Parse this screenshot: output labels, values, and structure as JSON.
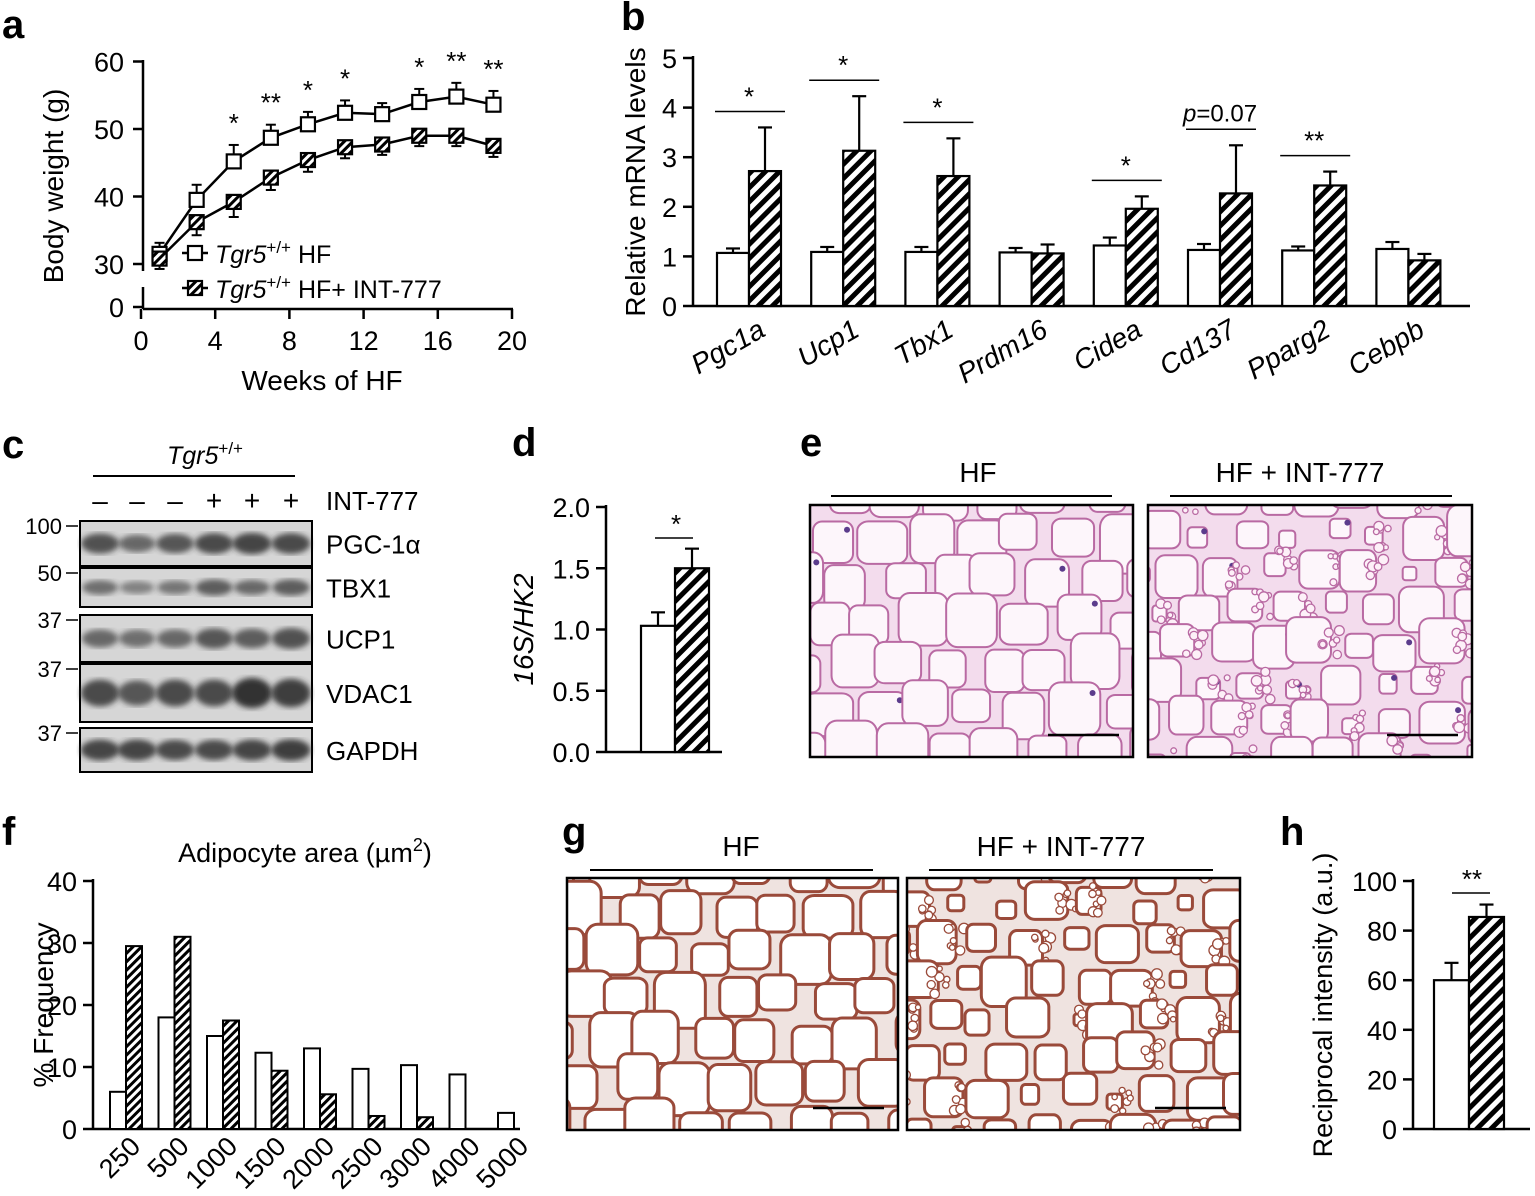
{
  "panels": {
    "a": {
      "letter": "a"
    },
    "b": {
      "letter": "b"
    },
    "c": {
      "letter": "c"
    },
    "d": {
      "letter": "d"
    },
    "e": {
      "letter": "e"
    },
    "f": {
      "letter": "f"
    },
    "g": {
      "letter": "g"
    },
    "h": {
      "letter": "h"
    }
  },
  "colors": {
    "ink": "#000000",
    "he_bg": "#f3dced",
    "he_cell": "#fdf6fb",
    "he_wall": "#b96aa3",
    "he_nuc": "#5b3c8c",
    "ihc_bg": "#efe3e0",
    "ihc_cell": "#ffffff",
    "ihc_wall": "#9a4a3a",
    "blot_bg": "#d6d6d6",
    "blot_band": "#2a2a2a"
  },
  "chart_data": [
    {
      "id": "a",
      "type": "line",
      "title": "",
      "xlabel": "Weeks of HF",
      "ylabel": "Body weight (g)",
      "xlim": [
        0,
        20
      ],
      "ylim_break": [
        [
          0,
          0
        ],
        [
          30,
          60
        ]
      ],
      "xticks": [
        "0",
        "4",
        "8",
        "12",
        "16",
        "20"
      ],
      "yticks": [
        "0",
        "30",
        "40",
        "50",
        "60"
      ],
      "x": [
        1,
        3,
        5,
        7,
        9,
        11,
        13,
        15,
        17,
        19
      ],
      "series": [
        {
          "name": "HF",
          "genotype": "Tgr5",
          "superscript": "+/+",
          "suffix": " HF",
          "marker": "open-square",
          "values": [
            31.5,
            39.5,
            45.2,
            48.7,
            50.7,
            52.4,
            52.2,
            54.0,
            54.8,
            53.6
          ],
          "errors": [
            0.6,
            1.2,
            1.4,
            0.9,
            0.8,
            0.8,
            0.6,
            0.9,
            1.0,
            1.0
          ]
        },
        {
          "name": "HF+ INT-777",
          "genotype": "Tgr5",
          "superscript": "+/+",
          "suffix": " HF+ INT-777",
          "marker": "hatched-square",
          "values": [
            30.8,
            36.2,
            39.2,
            42.8,
            45.4,
            47.3,
            47.7,
            49.0,
            49.0,
            47.5
          ],
          "errors": [
            0.5,
            0.9,
            1.2,
            0.8,
            0.7,
            0.6,
            0.5,
            0.5,
            0.5,
            0.6
          ]
        }
      ],
      "significance": [
        {
          "x": 5,
          "label": "*"
        },
        {
          "x": 7,
          "label": "**"
        },
        {
          "x": 9,
          "label": "*"
        },
        {
          "x": 11,
          "label": "*"
        },
        {
          "x": 15,
          "label": "*"
        },
        {
          "x": 17,
          "label": "**"
        },
        {
          "x": 19,
          "label": "**"
        }
      ]
    },
    {
      "id": "b",
      "type": "bar",
      "ylabel": "Relative mRNA levels",
      "ylim": [
        0,
        5
      ],
      "yticks": [
        "0",
        "1",
        "2",
        "3",
        "4",
        "5"
      ],
      "categories": [
        "Pgc1a",
        "Ucp1",
        "Tbx1",
        "Prdm16",
        "Cidea",
        "Cd137",
        "Pparg2",
        "Cebpb"
      ],
      "series": [
        {
          "name": "HF",
          "values": [
            1.07,
            1.09,
            1.09,
            1.08,
            1.22,
            1.13,
            1.12,
            1.15
          ],
          "errors": [
            0.09,
            0.1,
            0.1,
            0.09,
            0.16,
            0.12,
            0.08,
            0.14
          ]
        },
        {
          "name": "HF + INT-777",
          "values": [
            2.72,
            3.13,
            2.62,
            1.06,
            1.96,
            2.27,
            2.43,
            0.92
          ],
          "errors": [
            0.88,
            1.1,
            0.76,
            0.18,
            0.25,
            0.97,
            0.28,
            0.13
          ]
        }
      ],
      "significance": [
        {
          "category": "Pgc1a",
          "label": "*"
        },
        {
          "category": "Ucp1",
          "label": "*"
        },
        {
          "category": "Tbx1",
          "label": "*"
        },
        {
          "category": "Cidea",
          "label": "*"
        },
        {
          "category": "Cd137",
          "label": "p=0.07"
        },
        {
          "category": "Pparg2",
          "label": "**"
        }
      ]
    },
    {
      "id": "d",
      "type": "bar",
      "ylabel": "16S/HK2",
      "ylim": [
        0,
        2.0
      ],
      "yticks": [
        "0.0",
        "0.5",
        "1.0",
        "1.5",
        "2.0"
      ],
      "categories": [
        "HF",
        "HF + INT-777"
      ],
      "values": [
        1.03,
        1.5
      ],
      "errors": [
        0.11,
        0.16
      ],
      "significance": "*"
    },
    {
      "id": "f",
      "type": "bar",
      "title": "Adipocyte area (µm",
      "title_sup": "2",
      "title_end": ")",
      "ylabel": "% Frequency",
      "ylim": [
        0,
        40
      ],
      "yticks": [
        "0",
        "10",
        "20",
        "30",
        "40"
      ],
      "categories": [
        "250",
        "500",
        "1000",
        "1500",
        "2000",
        "2500",
        "3000",
        "4000",
        "5000"
      ],
      "series": [
        {
          "name": "HF",
          "values": [
            6,
            18,
            15,
            12.3,
            13,
            9.7,
            10.3,
            8.8,
            2.6
          ]
        },
        {
          "name": "HF + INT-777",
          "values": [
            29.5,
            31,
            17.5,
            9.4,
            5.6,
            2.1,
            1.9,
            0,
            0
          ]
        }
      ]
    },
    {
      "id": "h",
      "type": "bar",
      "ylabel": "Reciprocal intensity (a.u.)",
      "ylim": [
        0,
        100
      ],
      "yticks": [
        "0",
        "20",
        "40",
        "60",
        "80",
        "100"
      ],
      "categories": [
        "HF",
        "HF + INT-777"
      ],
      "values": [
        60,
        85.5
      ],
      "errors": [
        7,
        5
      ],
      "significance": "**"
    }
  ],
  "blot": {
    "genotype": "Tgr5",
    "superscript": "+/+",
    "treatment_label": "INT-777",
    "treatment": [
      "–",
      "–",
      "–",
      "+",
      "+",
      "+"
    ],
    "rows": [
      {
        "protein": "PGC-1α",
        "mw": "100",
        "intensity": [
          0.75,
          0.55,
          0.7,
          0.8,
          0.85,
          0.8
        ]
      },
      {
        "protein": "TBX1",
        "mw": "50",
        "intensity": [
          0.5,
          0.35,
          0.45,
          0.65,
          0.55,
          0.65
        ]
      },
      {
        "protein": "UCP1",
        "mw": "37",
        "intensity": [
          0.55,
          0.5,
          0.55,
          0.7,
          0.65,
          0.75
        ]
      },
      {
        "protein": "VDAC1",
        "mw": "37",
        "intensity": [
          0.8,
          0.7,
          0.8,
          0.8,
          1.0,
          0.9
        ]
      },
      {
        "protein": "GAPDH",
        "mw": "37",
        "intensity": [
          0.85,
          0.85,
          0.8,
          0.8,
          0.85,
          0.9
        ]
      }
    ]
  },
  "histology": {
    "e_left": "HF",
    "e_right": "HF + INT-777",
    "g_left": "HF",
    "g_right": "HF + INT-777"
  }
}
